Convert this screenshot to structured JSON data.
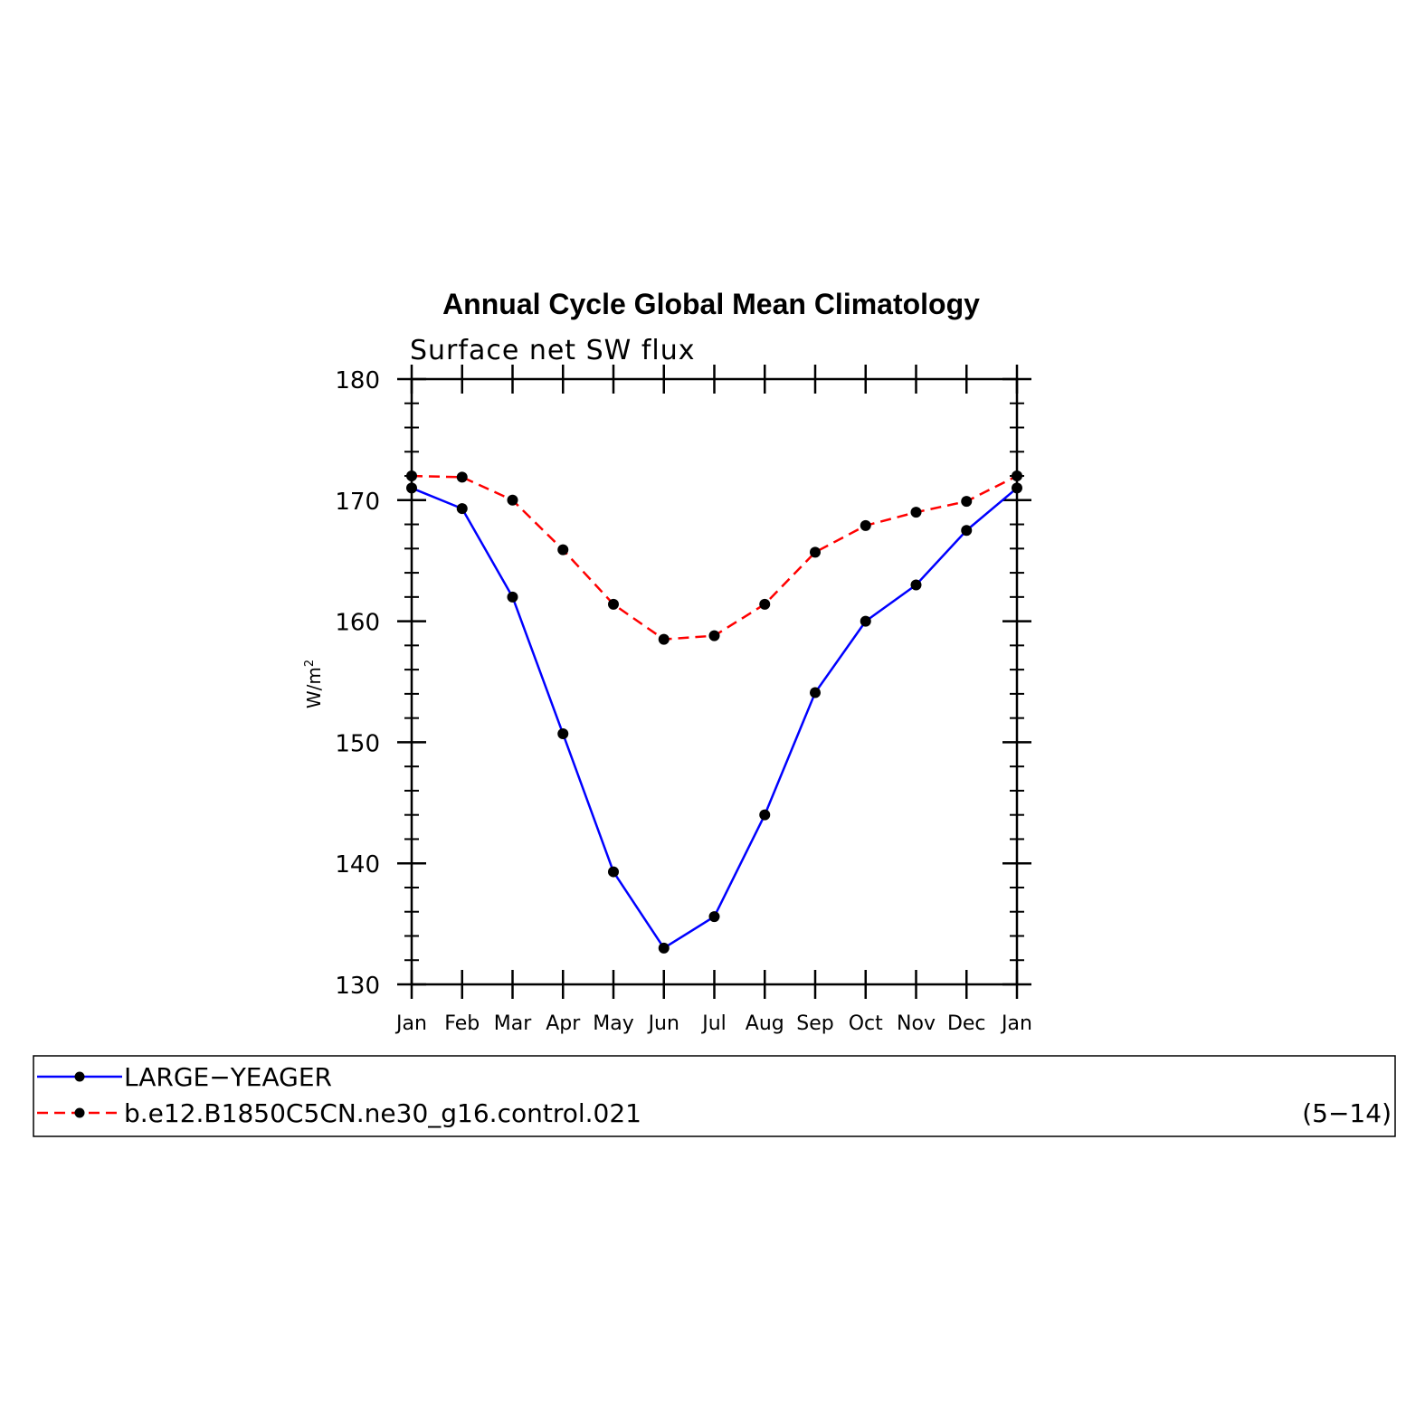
{
  "chart_data": {
    "type": "line",
    "title": "Annual Cycle Global Mean Climatology",
    "subtitle": "Surface net SW flux",
    "xlabel": "",
    "ylabel": "W/m",
    "ylabel_sup": "2",
    "ylim": [
      130,
      180
    ],
    "yticks": [
      130,
      140,
      150,
      160,
      170,
      180
    ],
    "categories": [
      "Jan",
      "Feb",
      "Mar",
      "Apr",
      "May",
      "Jun",
      "Jul",
      "Aug",
      "Sep",
      "Oct",
      "Nov",
      "Dec",
      "Jan"
    ],
    "grid": false,
    "legend_placement": "bottom",
    "series": [
      {
        "name": "LARGE−YEAGER",
        "color": "#0000ff",
        "dash": "solid",
        "values": [
          171.0,
          169.3,
          162.0,
          150.7,
          139.3,
          133.0,
          135.6,
          144.0,
          154.1,
          160.0,
          163.0,
          167.5,
          171.0
        ]
      },
      {
        "name": "b.e12.B1850C5CN.ne30_g16.control.021",
        "color": "#ff0000",
        "dash": "dashed",
        "values": [
          172.0,
          171.9,
          170.0,
          165.9,
          161.4,
          158.5,
          158.8,
          161.4,
          165.7,
          167.9,
          169.0,
          169.9,
          172.0
        ]
      }
    ],
    "annotation": "(5−14)"
  }
}
